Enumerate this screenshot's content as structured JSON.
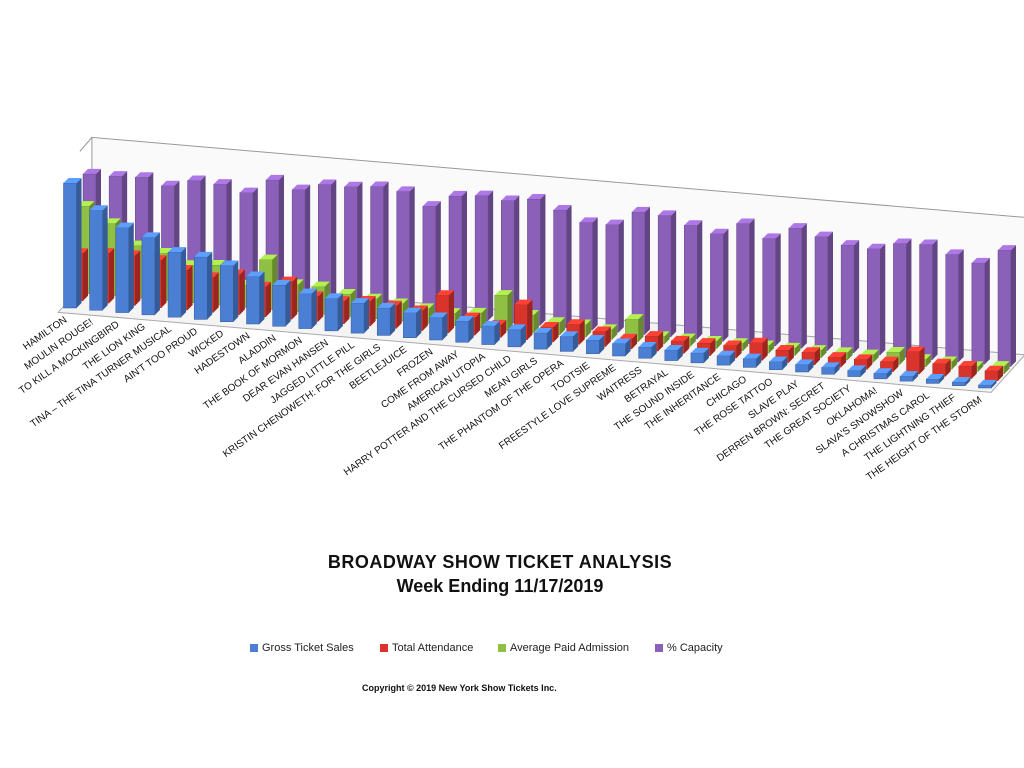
{
  "chart_data": {
    "type": "bar",
    "title": "BROADWAY SHOW TICKET ANALYSIS",
    "subtitle": "Week Ending 11/17/2019",
    "categories": [
      "HAMILTON",
      "MOULIN ROUGE!",
      "TO KILL A MOCKINGBIRD",
      "THE LION KING",
      "TINA – THE TINA TURNER MUSICAL",
      "AIN'T TOO PROUD",
      "WICKED",
      "HADESTOWN",
      "ALADDIN",
      "THE BOOK OF MORMON",
      "DEAR EVAN HANSEN",
      "JAGGED LITTLE PILL",
      "KRISTIN CHENOWETH: FOR THE GIRLS",
      "BEETLEJUICE",
      "FROZEN",
      "COME FROM AWAY",
      "AMERICAN UTOPIA",
      "HARRY POTTER AND THE CURSED CHILD",
      "MEAN GIRLS",
      "THE PHANTOM OF THE OPERA",
      "TOOTSIE",
      "FREESTYLE LOVE SUPREME",
      "WAITRESS",
      "BETRAYAL",
      "THE SOUND INSIDE",
      "THE INHERITANCE",
      "CHICAGO",
      "THE ROSE TATTOO",
      "SLAVE PLAY",
      "DERREN BROWN: SECRET",
      "THE GREAT SOCIETY",
      "OKLAHOMA!",
      "SLAVA'S SNOWSHOW",
      "A CHRISTMAS CAROL",
      "THE LIGHTNING THIEF",
      "THE HEIGHT OF THE STORM"
    ],
    "series": [
      {
        "name": "Gross Ticket Sales",
        "color": "#4a7fd4",
        "values": [
          100,
          80,
          68,
          62,
          52,
          50,
          45,
          38,
          33,
          28,
          26,
          24,
          22,
          20,
          18,
          17,
          15,
          14,
          13,
          12,
          11,
          10,
          9,
          8.5,
          8,
          7.5,
          7,
          6.5,
          6,
          5.5,
          5,
          4.5,
          4,
          3.5,
          3,
          2.5
        ]
      },
      {
        "name": "Total Attendance",
        "color": "#d9342b",
        "values": [
          38,
          40,
          40,
          38,
          32,
          28,
          32,
          24,
          30,
          20,
          18,
          20,
          18,
          16,
          30,
          14,
          10,
          28,
          12,
          16,
          12,
          8,
          12,
          10,
          10,
          10,
          14,
          10,
          10,
          8,
          8,
          8,
          18,
          10,
          10,
          8
        ]
      },
      {
        "name": "Average Paid Admission",
        "color": "#8fc043",
        "values": [
          70,
          58,
          42,
          38,
          30,
          32,
          18,
          40,
          22,
          22,
          18,
          16,
          14,
          12,
          10,
          12,
          28,
          14,
          10,
          10,
          8,
          18,
          6,
          6,
          6,
          6,
          6,
          6,
          6,
          6,
          6,
          10,
          6,
          6,
          4,
          6
        ]
      },
      {
        "name": "% Capacity",
        "color": "#8a60b8",
        "values": [
          90,
          90,
          91,
          86,
          92,
          91,
          86,
          98,
          92,
          98,
          98,
          100,
          98,
          88,
          98,
          100,
          98,
          101,
          94,
          86,
          86,
          98,
          97,
          91,
          86,
          96,
          86,
          96,
          91,
          86,
          85,
          91,
          92,
          86,
          81,
          93
        ]
      }
    ],
    "xlabel": "",
    "ylabel": "",
    "ylim": [
      0,
      110
    ],
    "legend": "bottom",
    "grid": false,
    "copyright": "Copyright © 2019 New York Show Tickets Inc."
  }
}
